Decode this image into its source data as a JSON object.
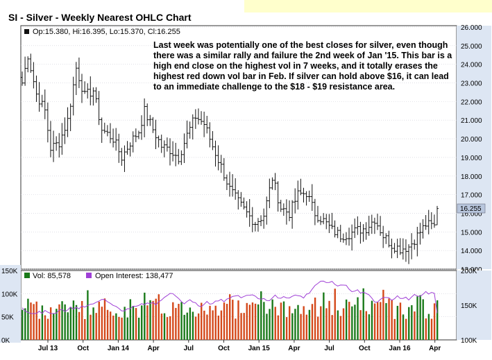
{
  "title": "SI - Silver - Weekly Nearest OHLC Chart",
  "price_legend": "Op:15.380, Hi:16.395, Lo:15.370, Cl:16.255",
  "annotation": [
    "Last week was potentially one of the best closes for silver, even though",
    "there was a similar rally and failure the 2nd week of Jan '15.  This bar is a",
    "high end close on the highest vol in 7 weeks, and it totally erases the",
    "highest red down vol bar in Feb.  If silver can hold above $16, it can lead",
    "to an immediate challenge to the $18 - $19 resistance area."
  ],
  "last_price_label": "16.255",
  "volume_legend": "Vol: 85,578",
  "oi_legend": "Open Interest: 138,477",
  "colors": {
    "header_highlight": "#ffffcc",
    "plot_bg": "#ffffff",
    "grid": "#ccccd6",
    "axis_band": "#dde6f3",
    "bar_up": "#1a7a1a",
    "bar_down": "#d4481a",
    "oi_line": "#9f3fd6",
    "price_marker_bg": "#b8c6dd"
  },
  "chart_data": [
    {
      "type": "ohlc",
      "title": "SI - Silver - Weekly Nearest OHLC Chart",
      "ylim": [
        13.0,
        26.0
      ],
      "y_ticks": [
        "13.000",
        "14.000",
        "15.000",
        "16.000",
        "17.000",
        "18.000",
        "19.000",
        "20.000",
        "21.000",
        "22.000",
        "23.000",
        "24.000",
        "25.000",
        "26.000"
      ],
      "x_ticks": [
        "Jul 13",
        "Oct",
        "Jan 14",
        "Apr",
        "Jul",
        "Oct",
        "Jan 15",
        "Apr",
        "Jul",
        "Oct",
        "Jan 16",
        "Apr"
      ],
      "last": {
        "open": 15.38,
        "high": 16.395,
        "low": 15.37,
        "close": 16.255
      },
      "anchors": [
        [
          0,
          23.0
        ],
        [
          2,
          24.5
        ],
        [
          5,
          22.4
        ],
        [
          8,
          21.5
        ],
        [
          10,
          19.5
        ],
        [
          13,
          19.8
        ],
        [
          16,
          21.0
        ],
        [
          19,
          23.8
        ],
        [
          22,
          22.3
        ],
        [
          25,
          22.6
        ],
        [
          28,
          20.5
        ],
        [
          32,
          20.0
        ],
        [
          35,
          19.0
        ],
        [
          38,
          19.8
        ],
        [
          41,
          20.4
        ],
        [
          43,
          21.5
        ],
        [
          46,
          20.5
        ],
        [
          49,
          19.6
        ],
        [
          52,
          19.4
        ],
        [
          55,
          19.0
        ],
        [
          58,
          20.2
        ],
        [
          61,
          21.2
        ],
        [
          64,
          20.8
        ],
        [
          67,
          19.6
        ],
        [
          70,
          18.5
        ],
        [
          73,
          17.3
        ],
        [
          76,
          16.6
        ],
        [
          79,
          16.0
        ],
        [
          82,
          15.5
        ],
        [
          85,
          15.9
        ],
        [
          88,
          17.9
        ],
        [
          91,
          16.3
        ],
        [
          94,
          16.0
        ],
        [
          97,
          17.0
        ],
        [
          100,
          17.1
        ],
        [
          103,
          16.0
        ],
        [
          106,
          15.6
        ],
        [
          109,
          15.1
        ],
        [
          112,
          14.8
        ],
        [
          115,
          14.9
        ],
        [
          118,
          15.1
        ],
        [
          121,
          15.2
        ],
        [
          124,
          15.7
        ],
        [
          127,
          14.8
        ],
        [
          130,
          14.3
        ],
        [
          133,
          14.1
        ],
        [
          136,
          14.2
        ],
        [
          139,
          14.8
        ],
        [
          142,
          15.4
        ],
        [
          145,
          15.3
        ],
        [
          146,
          16.2
        ]
      ]
    },
    {
      "type": "bar+line",
      "series": [
        {
          "name": "Vol",
          "last": 85578
        },
        {
          "name": "Open Interest",
          "last": 138477
        }
      ],
      "ylim_left": [
        0,
        150000
      ],
      "ylim_right": [
        100000,
        200000
      ],
      "left_ticks": [
        "0K",
        "50K",
        "100K",
        "150K"
      ],
      "right_ticks": [
        "100K",
        "150K",
        "200K"
      ]
    }
  ]
}
